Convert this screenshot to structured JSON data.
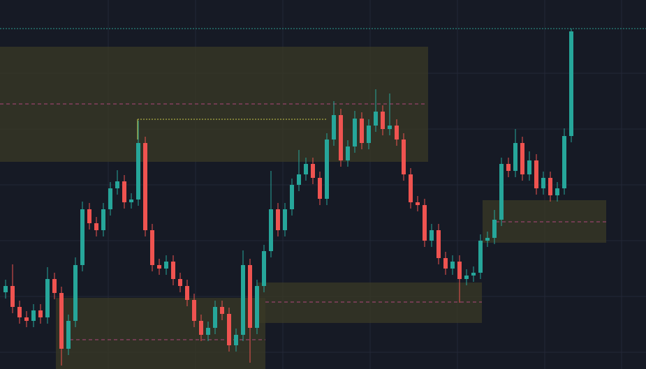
{
  "chart_data": {
    "type": "candlestick",
    "ylim": [
      0,
      529
    ],
    "up_color": "#26a69a",
    "down_color": "#ef5350",
    "open": [
      110,
      119,
      89,
      74,
      69,
      84,
      74,
      129,
      109,
      29,
      69,
      149,
      229,
      209,
      199,
      229,
      259,
      269,
      239,
      243,
      324,
      199,
      149,
      144,
      154,
      129,
      119,
      99,
      69,
      49,
      59,
      89,
      79,
      34,
      49,
      149,
      59,
      119,
      169,
      229,
      199,
      229,
      264,
      279,
      294,
      274,
      244,
      329,
      364,
      299,
      319,
      359,
      324,
      349,
      369,
      344,
      349,
      329,
      279,
      239,
      235,
      184,
      199,
      159,
      144,
      154,
      129,
      134,
      138,
      184,
      188,
      214,
      294,
      284,
      324,
      279,
      299,
      259,
      274,
      249,
      259,
      334
    ],
    "high": [
      128,
      150,
      98,
      83,
      93,
      93,
      146,
      138,
      118,
      78,
      160,
      240,
      238,
      218,
      238,
      268,
      285,
      278,
      252,
      356,
      333,
      208,
      158,
      163,
      163,
      138,
      128,
      108,
      78,
      68,
      98,
      98,
      88,
      58,
      170,
      158,
      128,
      178,
      284,
      238,
      238,
      273,
      314,
      303,
      303,
      283,
      338,
      384,
      373,
      328,
      370,
      368,
      358,
      401,
      378,
      395,
      358,
      338,
      288,
      248,
      244,
      208,
      208,
      168,
      163,
      163,
      143,
      147,
      193,
      197,
      228,
      303,
      303,
      344,
      333,
      312,
      308,
      283,
      283,
      268,
      345,
      488
    ],
    "low": [
      101,
      80,
      65,
      60,
      60,
      65,
      65,
      100,
      5,
      20,
      60,
      140,
      200,
      190,
      190,
      220,
      250,
      230,
      230,
      234,
      190,
      140,
      135,
      135,
      120,
      110,
      90,
      60,
      40,
      40,
      50,
      70,
      25,
      25,
      40,
      9,
      50,
      110,
      160,
      190,
      190,
      220,
      255,
      270,
      265,
      235,
      235,
      320,
      290,
      290,
      310,
      315,
      315,
      340,
      335,
      335,
      320,
      270,
      230,
      226,
      175,
      175,
      150,
      135,
      135,
      95,
      120,
      125,
      129,
      175,
      179,
      205,
      275,
      275,
      270,
      270,
      250,
      250,
      240,
      240,
      250,
      325
    ],
    "close": [
      119,
      89,
      74,
      69,
      84,
      74,
      129,
      109,
      29,
      69,
      149,
      229,
      209,
      199,
      229,
      259,
      269,
      239,
      243,
      324,
      199,
      149,
      144,
      154,
      129,
      119,
      99,
      69,
      49,
      59,
      89,
      79,
      34,
      49,
      149,
      59,
      119,
      169,
      229,
      199,
      229,
      264,
      279,
      294,
      274,
      244,
      329,
      364,
      299,
      319,
      359,
      324,
      349,
      369,
      344,
      349,
      329,
      279,
      239,
      235,
      184,
      199,
      159,
      144,
      154,
      129,
      134,
      138,
      184,
      188,
      214,
      294,
      284,
      324,
      279,
      299,
      259,
      274,
      249,
      259,
      334,
      484
    ]
  }
}
